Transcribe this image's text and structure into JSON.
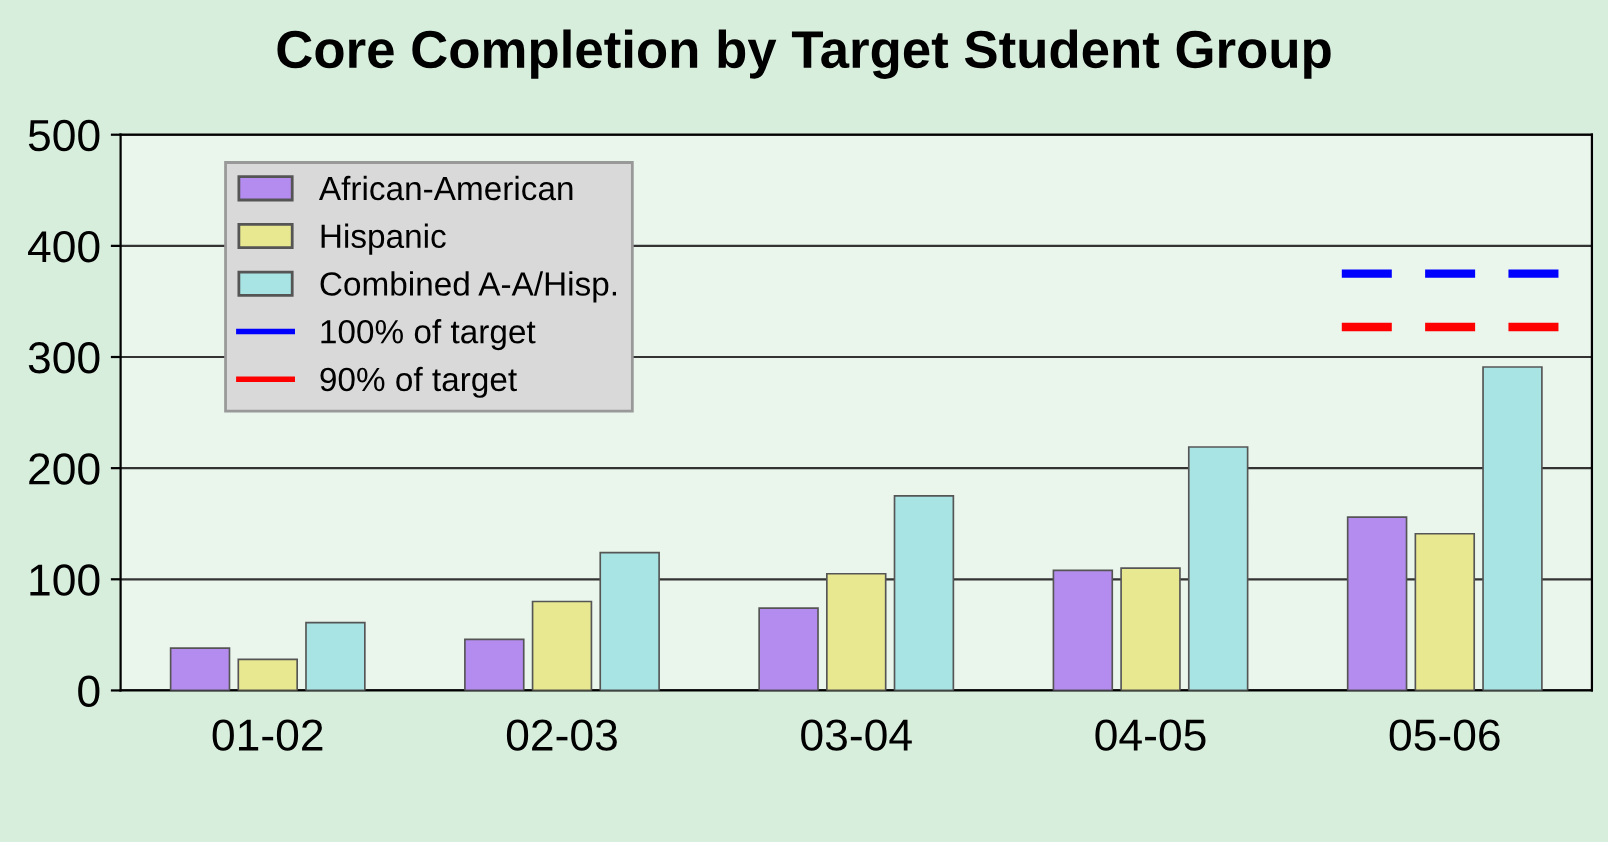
{
  "chart_data": {
    "type": "bar",
    "title": "Core Completion by Target Student Group",
    "categories": [
      "01-02",
      "02-03",
      "03-04",
      "04-05",
      "05-06"
    ],
    "series": [
      {
        "name": "African-American",
        "color": "#b48cf0",
        "values": [
          38,
          46,
          74,
          108,
          156
        ]
      },
      {
        "name": "Hispanic",
        "color": "#e8e890",
        "values": [
          28,
          80,
          105,
          110,
          141
        ]
      },
      {
        "name": "Combined A-A/Hisp.",
        "color": "#a8e4e4",
        "values": [
          61,
          124,
          175,
          219,
          291
        ]
      }
    ],
    "ref_lines": [
      {
        "axis": "y",
        "value": 375,
        "label": "100% of target",
        "color": "#0000ff",
        "line_style": "dashed"
      },
      {
        "axis": "y",
        "value": 327,
        "label": "90% of target",
        "color": "#ff0000",
        "line_style": "dashed"
      }
    ],
    "ylim": [
      0,
      500
    ],
    "yticks": [
      0,
      100,
      200,
      300,
      400,
      500
    ],
    "grid": "y",
    "legend": "top left"
  }
}
